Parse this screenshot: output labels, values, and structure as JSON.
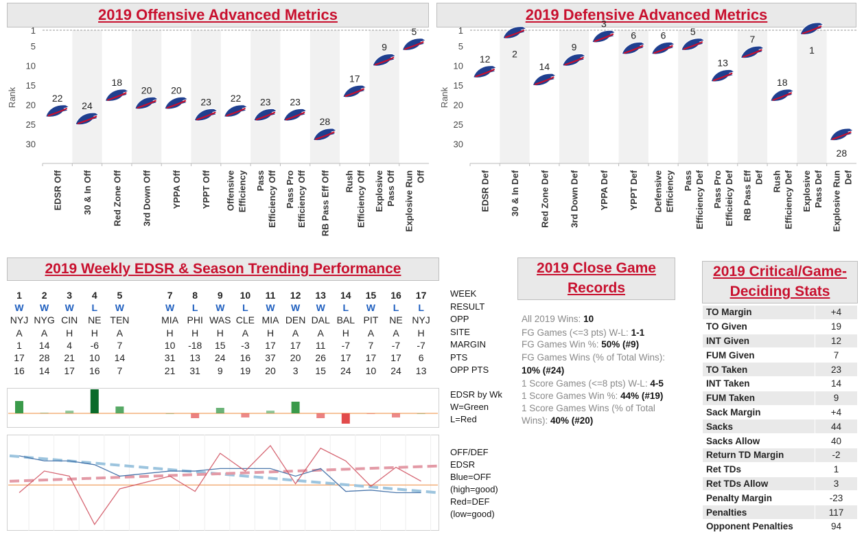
{
  "titles": {
    "offensive": "2019 Offensive Advanced Metrics",
    "defensive": "2019 Defensive Advanced Metrics",
    "weekly": "2019 Weekly EDSR & Season Trending Performance",
    "close": "2019 Close Game Records",
    "critical": "2019 Critical/Game-Deciding Stats"
  },
  "chart_data": [
    {
      "type": "scatter",
      "title": "2019 Offensive Advanced Metrics",
      "ylabel": "Rank",
      "ylim": [
        1,
        32
      ],
      "yticks": [
        1,
        5,
        10,
        15,
        20,
        25,
        30
      ],
      "y_reversed": true,
      "categories": [
        "EDSR Off",
        "30 & In Off",
        "Red Zone Off",
        "3rd Down Off",
        "YPPA Off",
        "YPPT Off",
        "Offensive Efficiency",
        "Pass Efficiency Off",
        "Pass Pro Efficiency Off",
        "RB Pass Eff Off",
        "Rush Efficiency Off",
        "Explosive Pass Off",
        "Explosive Run Off"
      ],
      "category_lines": [
        [
          "EDSR Off"
        ],
        [
          "30 & In Off"
        ],
        [
          "Red Zone Off"
        ],
        [
          "3rd Down Off"
        ],
        [
          "YPPA Off"
        ],
        [
          "YPPT Off"
        ],
        [
          "Offensive",
          "Efficiency"
        ],
        [
          "Pass",
          "Efficiency Off"
        ],
        [
          "Pass Pro",
          "Efficiency Off"
        ],
        [
          "RB Pass Eff Off"
        ],
        [
          "Rush",
          "Efficiency Off"
        ],
        [
          "Explosive",
          "Pass Off"
        ],
        [
          "Explosive Run",
          "Off"
        ]
      ],
      "values": [
        22,
        24,
        18,
        20,
        20,
        23,
        22,
        23,
        23,
        28,
        17,
        9,
        5
      ]
    },
    {
      "type": "scatter",
      "title": "2019 Defensive Advanced Metrics",
      "ylabel": "Rank",
      "ylim": [
        1,
        32
      ],
      "yticks": [
        1,
        5,
        10,
        15,
        20,
        25,
        30
      ],
      "y_reversed": true,
      "categories": [
        "EDSR Def",
        "30 & In Def",
        "Red Zone Def",
        "3rd Down Def",
        "YPPA Def",
        "YPPT Def",
        "Defensive Efficiency",
        "Pass Efficiency Def",
        "Pass Pro Efficiency Def",
        "RB Pass Eff Def",
        "Rush Efficiency Def",
        "Explosive Pass Def",
        "Explosive Run Def"
      ],
      "category_lines": [
        [
          "EDSR Def"
        ],
        [
          "30 & In Def"
        ],
        [
          "Red Zone Def"
        ],
        [
          "3rd Down Def"
        ],
        [
          "YPPA Def"
        ],
        [
          "YPPT Def"
        ],
        [
          "Defensive",
          "Efficiency"
        ],
        [
          "Pass",
          "Efficiency Def"
        ],
        [
          "Pass Pro",
          "Efficieicy Def"
        ],
        [
          "RB Pass Eff",
          "Def"
        ],
        [
          "Rush",
          "Efficiency Def"
        ],
        [
          "Explosive",
          "Pass Def"
        ],
        [
          "Explosive Run",
          "Def"
        ]
      ],
      "values": [
        12,
        2,
        14,
        9,
        3,
        6,
        6,
        5,
        13,
        7,
        18,
        1,
        28
      ]
    },
    {
      "type": "bar",
      "title": "EDSR by Wk",
      "x": [
        1,
        2,
        3,
        4,
        5,
        7,
        8,
        9,
        10,
        11,
        12,
        13,
        14,
        15,
        16,
        17
      ],
      "values": [
        18,
        1,
        4,
        35,
        10,
        0,
        -7,
        8,
        -6,
        4,
        17,
        -7,
        -15,
        -1,
        -6,
        0
      ],
      "colors": {
        "win": "#3a9a4a",
        "win_dark": "#0b6b2a",
        "loss": "#e24b4b"
      }
    },
    {
      "type": "line",
      "title": "OFF/DEF EDSR",
      "x": [
        1,
        2,
        3,
        4,
        5,
        7,
        8,
        9,
        10,
        11,
        12,
        13,
        14,
        15,
        16,
        17
      ],
      "series": [
        {
          "name": "Blue=OFF",
          "values": [
            84,
            80,
            80,
            77,
            68,
            72,
            72,
            74,
            74,
            74,
            68,
            74,
            56,
            57,
            55,
            55
          ]
        },
        {
          "name": "Red=DEF",
          "values": [
            55,
            72,
            68,
            30,
            58,
            68,
            56,
            86,
            72,
            92,
            62,
            90,
            80,
            60,
            75,
            64
          ]
        }
      ],
      "trend": {
        "blue": [
          84,
          55
        ],
        "red": [
          64,
          76
        ]
      },
      "baseline": 61
    }
  ],
  "weekly": {
    "weeks": [
      "1",
      "2",
      "3",
      "4",
      "5",
      "",
      "7",
      "8",
      "9",
      "10",
      "11",
      "12",
      "13",
      "14",
      "15",
      "16",
      "17"
    ],
    "results": [
      "W",
      "W",
      "W",
      "L",
      "W",
      "",
      "W",
      "L",
      "W",
      "L",
      "W",
      "W",
      "W",
      "L",
      "W",
      "L",
      "L"
    ],
    "opp": [
      "NYJ",
      "NYG",
      "CIN",
      "NE",
      "TEN",
      "",
      "MIA",
      "PHI",
      "WAS",
      "CLE",
      "MIA",
      "DEN",
      "DAL",
      "BAL",
      "PIT",
      "NE",
      "NYJ"
    ],
    "site": [
      "A",
      "A",
      "H",
      "H",
      "A",
      "",
      "H",
      "H",
      "H",
      "A",
      "H",
      "A",
      "A",
      "H",
      "A",
      "A",
      "H"
    ],
    "margin": [
      "1",
      "14",
      "4",
      "-6",
      "7",
      "",
      "10",
      "-18",
      "15",
      "-3",
      "17",
      "17",
      "11",
      "-7",
      "7",
      "-7",
      "-7"
    ],
    "pts": [
      "17",
      "28",
      "21",
      "10",
      "14",
      "",
      "31",
      "13",
      "24",
      "16",
      "37",
      "20",
      "26",
      "17",
      "17",
      "17",
      "6"
    ],
    "opp_pts": [
      "16",
      "14",
      "17",
      "16",
      "7",
      "",
      "21",
      "31",
      "9",
      "19",
      "20",
      "3",
      "15",
      "24",
      "10",
      "24",
      "13"
    ],
    "row_labels": [
      "WEEK",
      "RESULT",
      "OPP",
      "SITE",
      "MARGIN",
      "PTS",
      "OPP PTS"
    ],
    "edsr_labels": [
      "EDSR by Wk",
      "W=Green",
      "L=Red"
    ],
    "trend_labels": [
      "OFF/DEF",
      "EDSR",
      "Blue=OFF",
      "(high=good)",
      "Red=DEF",
      "(low=good)"
    ]
  },
  "close_games": {
    "all_wins_label": "All 2019 Wins:",
    "all_wins_value": "10",
    "fg_wl_label": "FG Games (<=3 pts) W-L:",
    "fg_wl_value": "1-1",
    "fg_pct_label": "FG Games Win %:",
    "fg_pct_value": "50% (#9)",
    "fg_share_label": "FG Games Wins (% of Total Wins):",
    "fg_share_value": "10% (#24)",
    "one_wl_label": "1 Score Games (<=8 pts) W-L:",
    "one_wl_value": "4-5",
    "one_pct_label": "1 Score Games Win %:",
    "one_pct_value": "44% (#19)",
    "one_share_label_1": "1 Score Games Wins (% of Total",
    "one_share_label_2": "Wins):",
    "one_share_value": "40% (#20)"
  },
  "critical": [
    {
      "label": "TO Margin",
      "value": "+4"
    },
    {
      "label": "TO Given",
      "value": "19"
    },
    {
      "label": "INT Given",
      "value": "12"
    },
    {
      "label": "FUM Given",
      "value": "7"
    },
    {
      "label": "TO Taken",
      "value": "23"
    },
    {
      "label": "INT Taken",
      "value": "14"
    },
    {
      "label": "FUM Taken",
      "value": "9"
    },
    {
      "label": "Sack Margin",
      "value": "+4"
    },
    {
      "label": "Sacks",
      "value": "44"
    },
    {
      "label": "Sacks Allow",
      "value": "40"
    },
    {
      "label": "Return TD Margin",
      "value": "-2"
    },
    {
      "label": "Ret TDs",
      "value": "1"
    },
    {
      "label": "Ret TDs Allow",
      "value": "3"
    },
    {
      "label": "Penalty Margin",
      "value": "-23"
    },
    {
      "label": "Penalties",
      "value": "117"
    },
    {
      "label": "Opponent Penalties",
      "value": "94"
    }
  ],
  "colors": {
    "title_red": "#c8102e",
    "bills_blue": "#1f3f8f",
    "bills_red": "#c8102e",
    "off_blue": "#2c5f9e",
    "def_red": "#cf4b5a",
    "trend_blue": "#9cc4de",
    "trend_red": "#e39aa6",
    "baseline": "#f0a060"
  },
  "icons": {
    "marker": "bills-logo-icon"
  }
}
